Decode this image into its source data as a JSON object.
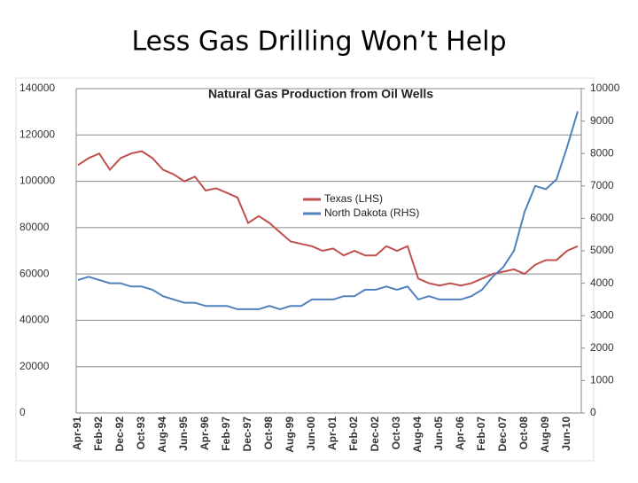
{
  "slide_title": "Less Gas Drilling Won’t Help",
  "chart_data": {
    "type": "line",
    "title": "Natural Gas Production from Oil Wells",
    "categories": [
      "Apr-91",
      null,
      "Feb-92",
      null,
      "Dec-92",
      null,
      "Oct-93",
      null,
      "Aug-94",
      null,
      "Jun-95",
      null,
      "Apr-96",
      null,
      "Feb-97",
      null,
      "Dec-97",
      null,
      "Oct-98",
      null,
      "Aug-99",
      null,
      "Jun-00",
      null,
      "Apr-01",
      null,
      "Feb-02",
      null,
      "Dec-02",
      null,
      "Oct-03",
      null,
      "Aug-04",
      null,
      "Jun-05",
      null,
      "Apr-06",
      null,
      "Feb-07",
      null,
      "Dec-07",
      null,
      "Oct-08",
      null,
      "Aug-09",
      null,
      "Jun-10",
      null
    ],
    "series": [
      {
        "name": "Texas (LHS)",
        "color": "#c0504d",
        "values": [
          107000,
          110000,
          112000,
          105000,
          110000,
          112000,
          113000,
          110000,
          105000,
          103000,
          100000,
          102000,
          96000,
          97000,
          95000,
          93000,
          82000,
          85000,
          82000,
          78000,
          74000,
          73000,
          72000,
          70000,
          71000,
          68000,
          70000,
          68000,
          68000,
          72000,
          70000,
          72000,
          58000,
          56000,
          55000,
          56000,
          55000,
          56000,
          58000,
          60000,
          61000,
          62000,
          60000,
          64000,
          66000,
          66000,
          70000,
          72000
        ]
      },
      {
        "name": "North Dakota (RHS)",
        "color": "#4f81bd",
        "axis": "y2",
        "values": [
          4100,
          4200,
          4100,
          4000,
          4000,
          3900,
          3900,
          3800,
          3600,
          3500,
          3400,
          3400,
          3300,
          3300,
          3300,
          3200,
          3200,
          3200,
          3300,
          3200,
          3300,
          3300,
          3500,
          3500,
          3500,
          3600,
          3600,
          3800,
          3800,
          3900,
          3800,
          3900,
          3500,
          3600,
          3500,
          3500,
          3500,
          3600,
          3800,
          4200,
          4500,
          5000,
          6200,
          7000,
          6900,
          7200,
          8200,
          9300
        ]
      }
    ],
    "ylim": [
      0,
      140000
    ],
    "yticks": [
      0,
      20000,
      40000,
      60000,
      80000,
      100000,
      120000,
      140000
    ],
    "y2lim": [
      0,
      10000
    ],
    "y2ticks": [
      0,
      1000,
      2000,
      3000,
      4000,
      5000,
      6000,
      7000,
      8000,
      9000,
      10000
    ],
    "grid": true
  }
}
